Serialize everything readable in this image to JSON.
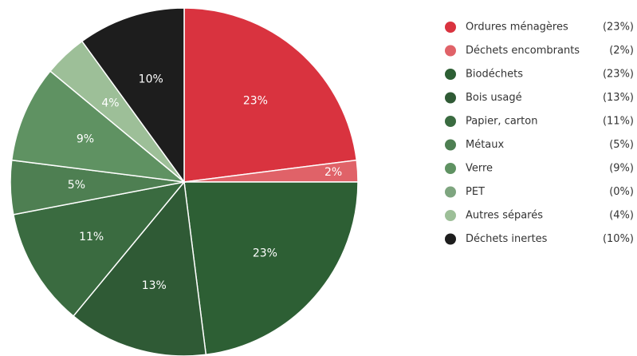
{
  "chart_data": {
    "type": "pie",
    "categories": [
      "Ordures ménagères",
      "Déchets encombrants",
      "Biodéchets",
      "Bois usagé",
      "Papier, carton",
      "Métaux",
      "Verre",
      "PET",
      "Autres séparés",
      "Déchets inertes"
    ],
    "values": [
      23,
      2,
      23,
      13,
      11,
      5,
      9,
      0,
      4,
      10
    ],
    "value_labels": [
      "23%",
      "2%",
      "23%",
      "13%",
      "11%",
      "5%",
      "9%",
      null,
      "4%",
      "10%"
    ],
    "legend_labels": [
      "(23%)",
      "(2%)",
      "(23%)",
      "(13%)",
      "(11%)",
      "(5%)",
      "(9%)",
      "(0%)",
      "(4%)",
      "(10%)"
    ],
    "colors": [
      "#d9333f",
      "#e06268",
      "#2d5f34",
      "#2f5a35",
      "#3a6b40",
      "#4e7f52",
      "#5f9262",
      "#7ea57f",
      "#9dbf98",
      "#1d1d1d"
    ],
    "legend": "right"
  }
}
